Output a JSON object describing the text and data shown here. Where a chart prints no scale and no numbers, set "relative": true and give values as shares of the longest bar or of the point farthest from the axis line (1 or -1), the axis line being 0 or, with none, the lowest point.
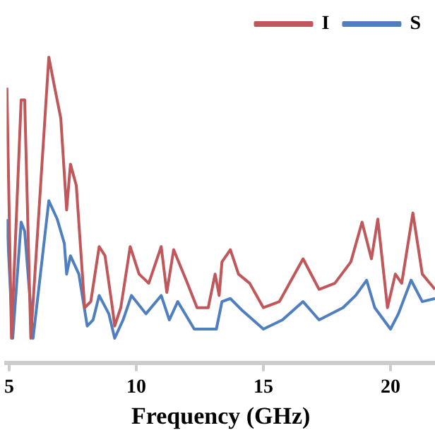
{
  "chart_data": {
    "type": "line",
    "xlabel": "Frequency (GHz)",
    "relative": true,
    "xlim": [
      4.9,
      21.75
    ],
    "xticks": [
      5,
      10,
      15,
      20
    ],
    "grid": false,
    "legend": "top right",
    "marker": "none",
    "line_style": "solid",
    "series": [
      {
        "name": "I",
        "color": "#c0575a",
        "x": [
          4.91,
          5.09,
          5.47,
          5.61,
          5.85,
          6.56,
          6.79,
          7.03,
          7.26,
          7.41,
          7.64,
          7.97,
          8.21,
          8.54,
          8.77,
          9.06,
          9.15,
          9.39,
          9.76,
          10.11,
          10.49,
          10.98,
          11.2,
          11.47,
          12.01,
          12.39,
          12.83,
          13.1,
          13.26,
          13.37,
          13.7,
          14.02,
          14.46,
          15.0,
          15.63,
          16.56,
          17.19,
          17.81,
          18.44,
          18.88,
          19.25,
          19.5,
          19.88,
          20.19,
          20.44,
          20.88,
          21.25,
          21.75
        ],
        "values": [
          0.9,
          0.08,
          0.86,
          0.86,
          0.08,
          1.0,
          0.9,
          0.8,
          0.5,
          0.65,
          0.58,
          0.18,
          0.2,
          0.38,
          0.35,
          0.18,
          0.12,
          0.18,
          0.38,
          0.29,
          0.26,
          0.38,
          0.23,
          0.37,
          0.26,
          0.18,
          0.18,
          0.29,
          0.22,
          0.33,
          0.37,
          0.29,
          0.26,
          0.18,
          0.2,
          0.34,
          0.24,
          0.26,
          0.33,
          0.46,
          0.34,
          0.47,
          0.18,
          0.29,
          0.26,
          0.49,
          0.29,
          0.24
        ]
      },
      {
        "name": "S",
        "color": "#4f7fbf",
        "x": [
          4.91,
          5.14,
          5.47,
          5.61,
          5.94,
          6.56,
          6.89,
          7.17,
          7.26,
          7.41,
          7.74,
          8.07,
          8.3,
          8.54,
          8.92,
          9.15,
          9.48,
          9.81,
          10.38,
          10.98,
          11.3,
          11.63,
          12.28,
          12.83,
          13.15,
          13.37,
          13.7,
          14.18,
          15.0,
          15.75,
          16.56,
          17.19,
          18.13,
          18.63,
          19.06,
          19.38,
          20.0,
          20.31,
          20.81,
          21.25,
          21.75
        ],
        "values": [
          0.47,
          0.08,
          0.46,
          0.43,
          0.08,
          0.53,
          0.47,
          0.39,
          0.29,
          0.35,
          0.29,
          0.12,
          0.14,
          0.22,
          0.16,
          0.08,
          0.14,
          0.22,
          0.16,
          0.22,
          0.14,
          0.2,
          0.11,
          0.11,
          0.11,
          0.2,
          0.21,
          0.17,
          0.11,
          0.14,
          0.2,
          0.14,
          0.18,
          0.22,
          0.27,
          0.18,
          0.11,
          0.16,
          0.27,
          0.2,
          0.21
        ]
      }
    ]
  }
}
